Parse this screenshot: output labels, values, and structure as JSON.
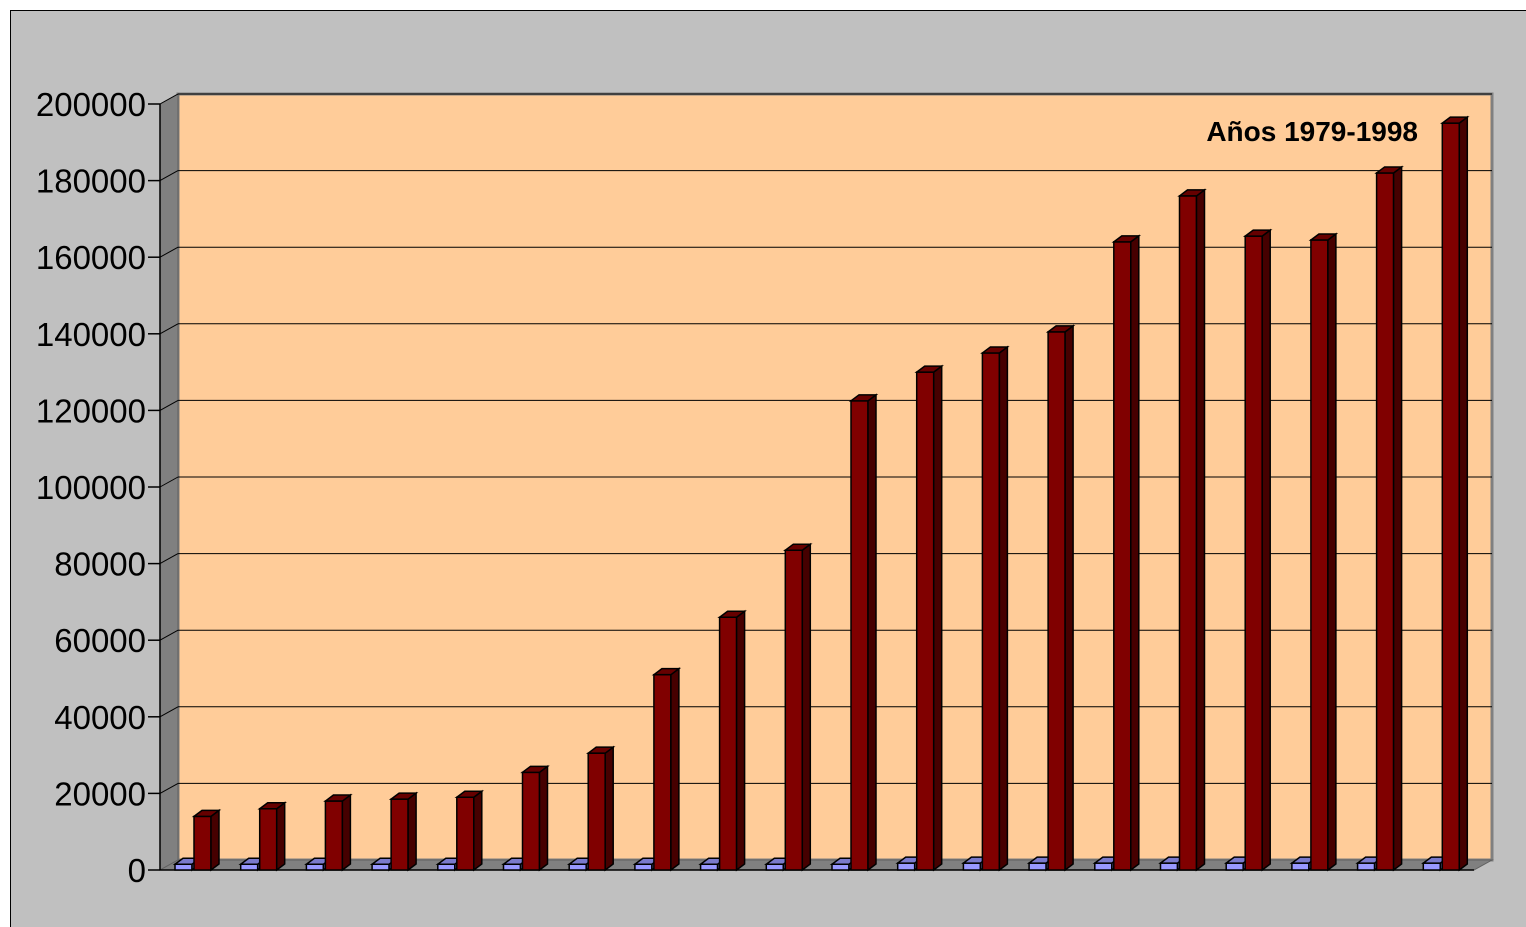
{
  "chart_data": {
    "type": "bar",
    "annotation": "Años 1979-1998",
    "categories": [
      "",
      "",
      "",
      "",
      "",
      "",
      "",
      "",
      "",
      "",
      "",
      "",
      "",
      "",
      "",
      "",
      "",
      "",
      "",
      ""
    ],
    "series": [
      {
        "values": [
          1500,
          1500,
          1500,
          1500,
          1500,
          1500,
          1500,
          1500,
          1500,
          1500,
          1500,
          1800,
          1800,
          1800,
          1800,
          1800,
          1800,
          1800,
          1800,
          1800
        ],
        "color": "#9999ff"
      },
      {
        "values": [
          14000,
          16000,
          18000,
          18500,
          19000,
          25500,
          30500,
          51000,
          66000,
          83500,
          122500,
          130000,
          135000,
          140500,
          164000,
          176000,
          165500,
          164500,
          182000,
          195000
        ],
        "color": "#800000"
      }
    ],
    "ylim": [
      0,
      200000
    ],
    "yticks": [
      "0",
      "20000",
      "40000",
      "60000",
      "80000",
      "100000",
      "120000",
      "140000",
      "160000",
      "180000",
      "200000"
    ],
    "grid": true,
    "colors": {
      "frame": "#c0c0c0",
      "plot_area": "#ffcc99",
      "wall_side": "#808080"
    }
  }
}
